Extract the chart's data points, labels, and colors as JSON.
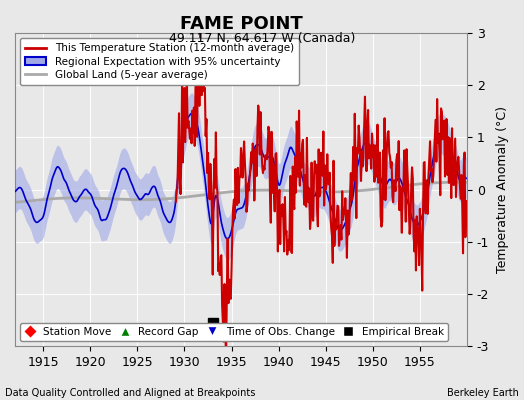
{
  "title": "FAME POINT",
  "subtitle": "49.117 N, 64.617 W (Canada)",
  "ylabel": "Temperature Anomaly (°C)",
  "xlabel_left": "Data Quality Controlled and Aligned at Breakpoints",
  "xlabel_right": "Berkeley Earth",
  "ylim": [
    -3,
    3
  ],
  "xlim": [
    1912,
    1960
  ],
  "xticks": [
    1915,
    1920,
    1925,
    1930,
    1935,
    1940,
    1945,
    1950,
    1955
  ],
  "yticks": [
    -3,
    -2,
    -1,
    0,
    1,
    2,
    3
  ],
  "bg_color": "#e8e8e8",
  "plot_bg_color": "#e8e8e8",
  "red_color": "#cc0000",
  "blue_color": "#0000cc",
  "blue_fill_color": "#a0a8e8",
  "gray_color": "#aaaaaa",
  "empirical_break_year": 1933,
  "empirical_break_value": -2.55,
  "legend1_labels": [
    "This Temperature Station (12-month average)",
    "Regional Expectation with 95% uncertainty",
    "Global Land (5-year average)"
  ],
  "legend2_labels": [
    "Station Move",
    "Record Gap",
    "Time of Obs. Change",
    "Empirical Break"
  ]
}
